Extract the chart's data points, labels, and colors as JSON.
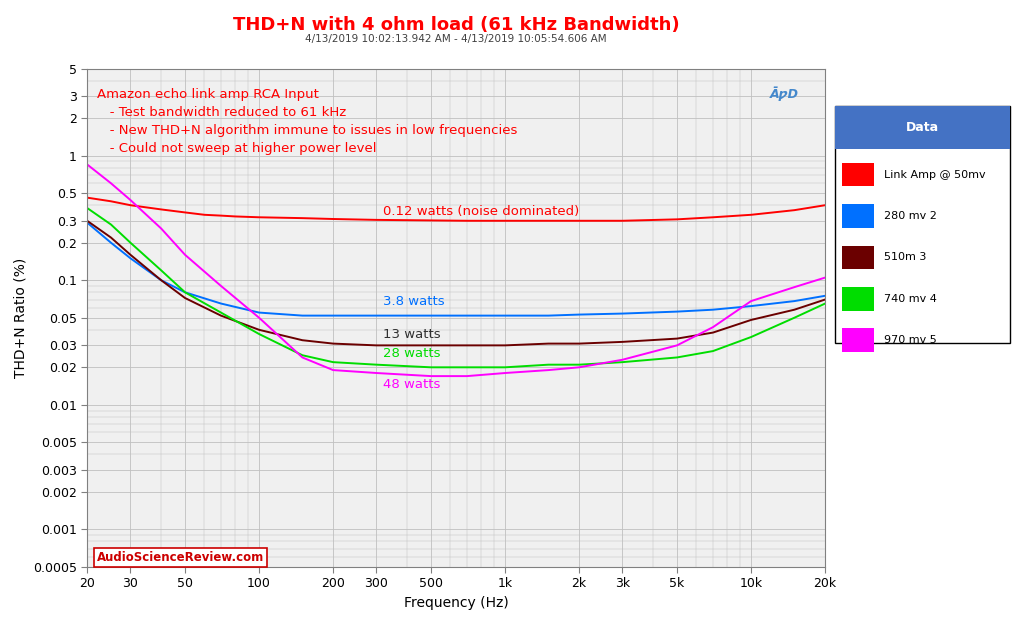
{
  "title": "THD+N with 4 ohm load (61 kHz Bandwidth)",
  "subtitle": "4/13/2019 10:02:13.942 AM - 4/13/2019 10:05:54.606 AM",
  "xlabel": "Frequency (Hz)",
  "ylabel": "THD+N Ratio (%)",
  "title_color": "#FF0000",
  "subtitle_color": "#404040",
  "bg_color": "#F0F0F0",
  "grid_color": "#C0C0C0",
  "annotation_color": "#FF0000",
  "annotation_lines": [
    "Amazon echo link amp RCA Input",
    "   - Test bandwidth reduced to 61 kHz",
    "   - New THD+N algorithm immune to issues in low frequencies",
    "   - Could not sweep at higher power level"
  ],
  "label_0_12": "0.12 watts (noise dominated)",
  "label_3_8": "3.8 watts",
  "label_13": "13 watts",
  "label_28": "28 watts",
  "label_48": "48 watts",
  "watermark": "AudioScienceReview.com",
  "legend_title": "Data",
  "legend_entries": [
    "Link Amp @ 50mv",
    "280 mv 2",
    "510m 3",
    "740 mv 4",
    "970 mv 5"
  ],
  "line_colors": [
    "#FF0000",
    "#0070FF",
    "#6B0000",
    "#00DD00",
    "#FF00FF"
  ],
  "xmin": 20,
  "xmax": 20000,
  "ymin": 0.0005,
  "ymax": 5.0,
  "curve0_x": [
    20,
    25,
    30,
    40,
    50,
    60,
    70,
    80,
    100,
    150,
    200,
    300,
    500,
    700,
    1000,
    1500,
    2000,
    3000,
    5000,
    7000,
    10000,
    15000,
    20000
  ],
  "curve0_y": [
    0.46,
    0.43,
    0.4,
    0.37,
    0.35,
    0.335,
    0.33,
    0.325,
    0.32,
    0.315,
    0.31,
    0.305,
    0.302,
    0.3,
    0.3,
    0.3,
    0.3,
    0.3,
    0.308,
    0.32,
    0.335,
    0.365,
    0.4
  ],
  "curve1_x": [
    20,
    25,
    30,
    40,
    50,
    70,
    100,
    150,
    200,
    300,
    500,
    700,
    1000,
    1500,
    2000,
    3000,
    5000,
    7000,
    10000,
    15000,
    20000
  ],
  "curve1_y": [
    0.29,
    0.2,
    0.15,
    0.1,
    0.08,
    0.065,
    0.055,
    0.052,
    0.052,
    0.052,
    0.052,
    0.052,
    0.052,
    0.052,
    0.053,
    0.054,
    0.056,
    0.058,
    0.062,
    0.068,
    0.075
  ],
  "curve2_x": [
    20,
    25,
    30,
    40,
    50,
    70,
    100,
    150,
    200,
    300,
    500,
    700,
    1000,
    1500,
    2000,
    3000,
    5000,
    7000,
    10000,
    15000,
    20000
  ],
  "curve2_y": [
    0.3,
    0.22,
    0.16,
    0.1,
    0.072,
    0.052,
    0.04,
    0.033,
    0.031,
    0.03,
    0.03,
    0.03,
    0.03,
    0.031,
    0.031,
    0.032,
    0.034,
    0.038,
    0.048,
    0.058,
    0.07
  ],
  "curve3_x": [
    20,
    25,
    30,
    40,
    50,
    70,
    100,
    150,
    200,
    300,
    500,
    700,
    1000,
    1500,
    2000,
    3000,
    5000,
    7000,
    10000,
    15000,
    20000
  ],
  "curve3_y": [
    0.38,
    0.28,
    0.2,
    0.12,
    0.08,
    0.055,
    0.037,
    0.025,
    0.022,
    0.021,
    0.02,
    0.02,
    0.02,
    0.021,
    0.021,
    0.022,
    0.024,
    0.027,
    0.035,
    0.05,
    0.065
  ],
  "curve4_x": [
    20,
    25,
    30,
    40,
    50,
    70,
    100,
    150,
    200,
    300,
    500,
    700,
    1000,
    1500,
    2000,
    3000,
    5000,
    7000,
    10000,
    15000,
    20000
  ],
  "curve4_y": [
    0.85,
    0.6,
    0.44,
    0.26,
    0.16,
    0.09,
    0.05,
    0.024,
    0.019,
    0.018,
    0.017,
    0.017,
    0.018,
    0.019,
    0.02,
    0.023,
    0.03,
    0.042,
    0.068,
    0.088,
    0.105
  ]
}
